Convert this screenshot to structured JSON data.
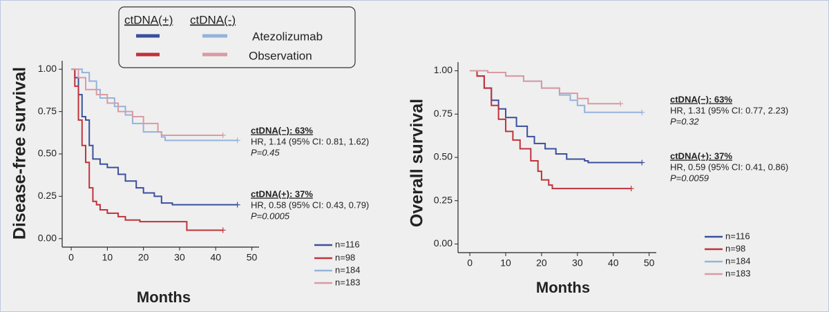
{
  "legend": {
    "headers": [
      "ctDNA(+)",
      "ctDNA(-)"
    ],
    "rows": [
      {
        "label": "Atezolizumab",
        "colors": [
          "#3a4f9c",
          "#93b3dc"
        ]
      },
      {
        "label": "Observation",
        "colors": [
          "#c0323a",
          "#d99aa3"
        ]
      }
    ]
  },
  "chart_data": [
    {
      "type": "step",
      "y_label": "Disease-free survival",
      "x_label": "Months",
      "xlim": [
        -2.5,
        52
      ],
      "ylim": [
        -0.05,
        1.05
      ],
      "xticks": [
        0,
        10,
        20,
        30,
        40,
        50
      ],
      "yticks": [
        {
          "value": 0,
          "label": "0.00"
        },
        {
          "value": 0.25,
          "label": "0.25"
        },
        {
          "value": 0.5,
          "label": "0.50"
        },
        {
          "value": 0.75,
          "label": "0.75"
        },
        {
          "value": 1,
          "label": "1.00"
        }
      ],
      "annotations": [
        [
          "ctDNA(−): 63%",
          "HR, 1.14 (95% CI: 0.81, 1.62)",
          "P=0.45"
        ],
        [
          "ctDNA(+): 37%",
          "HR, 0.58 (95% CI: 0.43, 0.79)",
          "P=0.0005"
        ]
      ],
      "series": [
        {
          "name": "n=116",
          "color": "#3a4f9c",
          "x": [
            0,
            1,
            2,
            3,
            4,
            5,
            6,
            8,
            10,
            13,
            15,
            18,
            20,
            23,
            25,
            28,
            46
          ],
          "values": [
            1.0,
            0.95,
            0.85,
            0.72,
            0.7,
            0.55,
            0.47,
            0.44,
            0.42,
            0.38,
            0.34,
            0.3,
            0.27,
            0.25,
            0.21,
            0.2,
            0.2
          ]
        },
        {
          "name": "n=98",
          "color": "#c0323a",
          "x": [
            0,
            1,
            2,
            3,
            4,
            5,
            6,
            7,
            8,
            10,
            13,
            15,
            19,
            32,
            42
          ],
          "values": [
            1.0,
            0.9,
            0.7,
            0.55,
            0.45,
            0.3,
            0.22,
            0.2,
            0.17,
            0.15,
            0.13,
            0.11,
            0.1,
            0.05,
            0.05
          ]
        },
        {
          "name": "n=184",
          "color": "#93b3dc",
          "x": [
            0,
            3,
            5,
            7,
            8,
            12,
            15,
            17,
            20,
            25,
            26,
            46
          ],
          "values": [
            1.0,
            0.98,
            0.93,
            0.88,
            0.83,
            0.78,
            0.73,
            0.68,
            0.63,
            0.6,
            0.58,
            0.58
          ]
        },
        {
          "name": "n=183",
          "color": "#d99aa3",
          "x": [
            0,
            2,
            4,
            7,
            10,
            13,
            17,
            20,
            24,
            25,
            42
          ],
          "values": [
            1.0,
            0.95,
            0.88,
            0.85,
            0.8,
            0.75,
            0.72,
            0.68,
            0.63,
            0.61,
            0.61
          ]
        }
      ]
    },
    {
      "type": "step",
      "y_label": "Overall survival",
      "x_label": "Months",
      "xlim": [
        -3.3,
        52
      ],
      "ylim": [
        -0.05,
        1.05
      ],
      "xticks": [
        0,
        10,
        20,
        30,
        40,
        50
      ],
      "yticks": [
        {
          "value": 0,
          "label": "0.00"
        },
        {
          "value": 0.25,
          "label": "0.25"
        },
        {
          "value": 0.5,
          "label": "0.50"
        },
        {
          "value": 0.75,
          "label": "0.75"
        },
        {
          "value": 1,
          "label": "1.00"
        }
      ],
      "annotations": [
        [
          "ctDNA(−): 63%",
          "HR, 1.31 (95% CI: 0.77, 2.23)",
          "P=0.32"
        ],
        [
          "ctDNA(+): 37%",
          "HR, 0.59 (95% CI: 0.41, 0.86)",
          "P=0.0059"
        ]
      ],
      "series": [
        {
          "name": "n=116",
          "color": "#3a4f9c",
          "x": [
            0,
            2,
            4,
            6,
            8,
            10,
            13,
            16,
            18,
            21,
            24,
            27,
            32,
            33,
            48
          ],
          "values": [
            1.0,
            0.97,
            0.9,
            0.83,
            0.78,
            0.73,
            0.68,
            0.62,
            0.58,
            0.55,
            0.52,
            0.49,
            0.48,
            0.47,
            0.47
          ]
        },
        {
          "name": "n=98",
          "color": "#c0323a",
          "x": [
            0,
            2,
            4,
            6,
            8,
            10,
            12,
            14,
            17,
            19,
            20,
            22,
            23,
            45
          ],
          "values": [
            1.0,
            0.97,
            0.9,
            0.8,
            0.72,
            0.65,
            0.6,
            0.55,
            0.48,
            0.42,
            0.37,
            0.34,
            0.32,
            0.32
          ]
        },
        {
          "name": "n=184",
          "color": "#93b3dc",
          "x": [
            0,
            5,
            10,
            15,
            20,
            25,
            28,
            30,
            32,
            48
          ],
          "values": [
            1.0,
            0.99,
            0.97,
            0.94,
            0.9,
            0.86,
            0.83,
            0.8,
            0.76,
            0.76
          ]
        },
        {
          "name": "n=183",
          "color": "#d99aa3",
          "x": [
            0,
            5,
            10,
            15,
            20,
            25,
            30,
            33,
            42
          ],
          "values": [
            1.0,
            0.99,
            0.97,
            0.94,
            0.9,
            0.87,
            0.84,
            0.81,
            0.81
          ]
        }
      ]
    }
  ]
}
